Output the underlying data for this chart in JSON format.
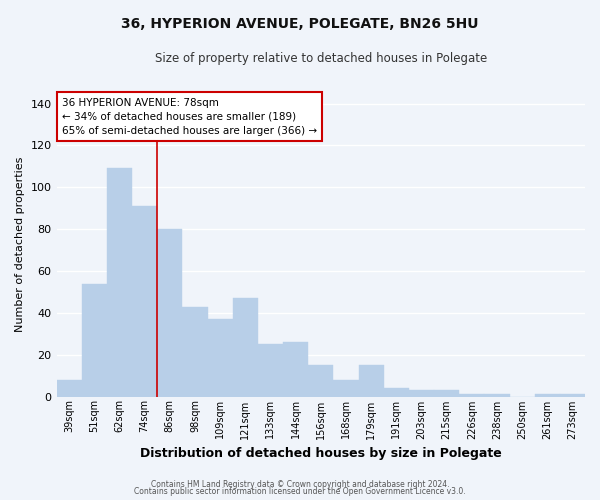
{
  "title": "36, HYPERION AVENUE, POLEGATE, BN26 5HU",
  "subtitle": "Size of property relative to detached houses in Polegate",
  "xlabel": "Distribution of detached houses by size in Polegate",
  "ylabel": "Number of detached properties",
  "categories": [
    "39sqm",
    "51sqm",
    "62sqm",
    "74sqm",
    "86sqm",
    "98sqm",
    "109sqm",
    "121sqm",
    "133sqm",
    "144sqm",
    "156sqm",
    "168sqm",
    "179sqm",
    "191sqm",
    "203sqm",
    "215sqm",
    "226sqm",
    "238sqm",
    "250sqm",
    "261sqm",
    "273sqm"
  ],
  "values": [
    8,
    54,
    109,
    91,
    80,
    43,
    37,
    47,
    25,
    26,
    15,
    8,
    15,
    4,
    3,
    3,
    1,
    1,
    0,
    1,
    1
  ],
  "bar_color": "#b8cfe8",
  "bar_edgecolor": "#b8cfe8",
  "background_color": "#f0f4fa",
  "plot_bg_color": "#f0f4fa",
  "grid_color": "#ffffff",
  "red_line_x": 3.5,
  "annotation_title": "36 HYPERION AVENUE: 78sqm",
  "annotation_line1": "← 34% of detached houses are smaller (189)",
  "annotation_line2": "65% of semi-detached houses are larger (366) →",
  "annotation_box_facecolor": "#ffffff",
  "annotation_box_edgecolor": "#cc0000",
  "red_line_color": "#cc0000",
  "ylim": [
    0,
    145
  ],
  "yticks": [
    0,
    20,
    40,
    60,
    80,
    100,
    120,
    140
  ],
  "footer1": "Contains HM Land Registry data © Crown copyright and database right 2024.",
  "footer2": "Contains public sector information licensed under the Open Government Licence v3.0."
}
